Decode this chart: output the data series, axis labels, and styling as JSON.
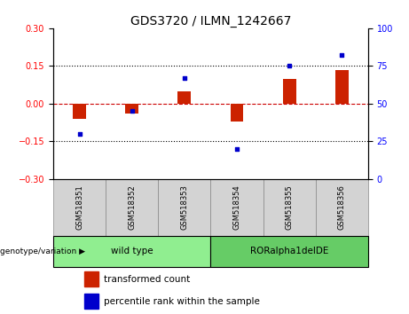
{
  "title": "GDS3720 / ILMN_1242667",
  "samples": [
    "GSM518351",
    "GSM518352",
    "GSM518353",
    "GSM518354",
    "GSM518355",
    "GSM518356"
  ],
  "red_bars": [
    -0.06,
    -0.04,
    0.05,
    -0.07,
    0.1,
    0.135
  ],
  "blue_percentiles": [
    30,
    45,
    67,
    20,
    75,
    82
  ],
  "ylim_left": [
    -0.3,
    0.3
  ],
  "ylim_right": [
    0,
    100
  ],
  "yticks_left": [
    -0.3,
    -0.15,
    0,
    0.15,
    0.3
  ],
  "yticks_right": [
    0,
    25,
    50,
    75,
    100
  ],
  "hlines_dotted": [
    0.15,
    -0.15
  ],
  "hline_dashed": 0,
  "groups": [
    {
      "label": "wild type",
      "indices": [
        0,
        1,
        2
      ],
      "color": "#90EE90"
    },
    {
      "label": "RORalpha1delDE",
      "indices": [
        3,
        4,
        5
      ],
      "color": "#66CC66"
    }
  ],
  "group_row_label": "genotype/variation",
  "legend_red": "transformed count",
  "legend_blue": "percentile rank within the sample",
  "bar_color": "#CC2200",
  "dot_color": "#0000CC",
  "zero_line_color": "#CC0000",
  "title_fontsize": 10,
  "tick_fontsize": 7,
  "label_fontsize": 7.5,
  "bar_width": 0.25
}
